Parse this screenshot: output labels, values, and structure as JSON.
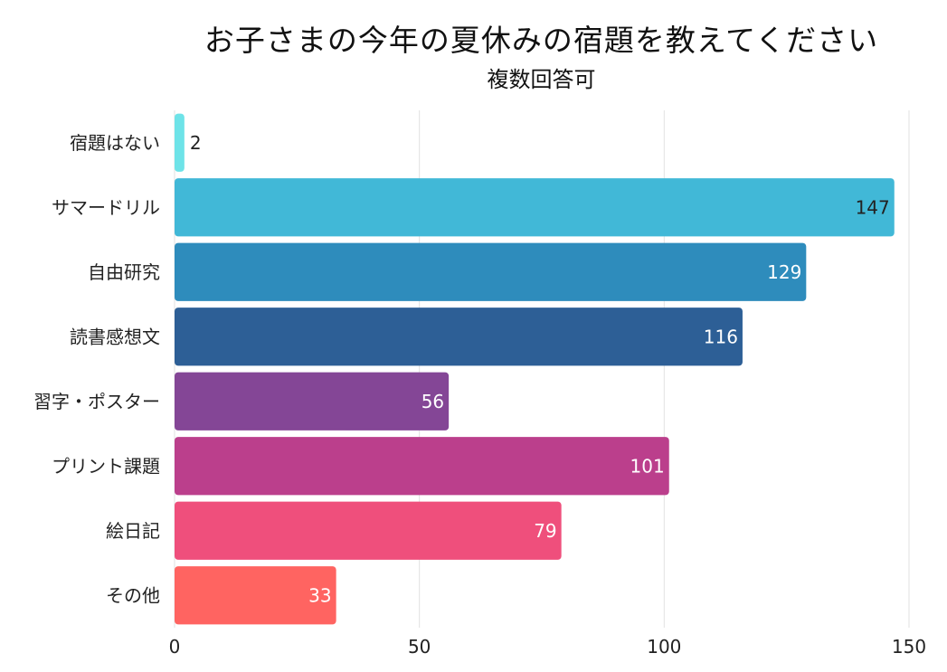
{
  "chart_data": {
    "type": "bar",
    "orientation": "horizontal",
    "title": "お子さまの今年の夏休みの宿題を教えてください",
    "subtitle": "複数回答可",
    "xlabel": "",
    "ylabel": "",
    "categories": [
      "宿題はない",
      "サマードリル",
      "自由研究",
      "読書感想文",
      "習字・ポスター",
      "プリント課題",
      "絵日記",
      "その他"
    ],
    "values": [
      2,
      147,
      129,
      116,
      56,
      101,
      79,
      33
    ],
    "colors": [
      "#6ee3e8",
      "#41b8d7",
      "#2e8cbc",
      "#2d5f96",
      "#844696",
      "#bb3f8c",
      "#ef4f7c",
      "#ff6461"
    ],
    "label_colors": [
      "#222222",
      "#222222",
      "#ffffff",
      "#ffffff",
      "#ffffff",
      "#ffffff",
      "#ffffff",
      "#ffffff"
    ],
    "xlim": [
      0,
      150
    ],
    "xticks": [
      0,
      50,
      100,
      150
    ],
    "grid": true,
    "legend": "none"
  }
}
